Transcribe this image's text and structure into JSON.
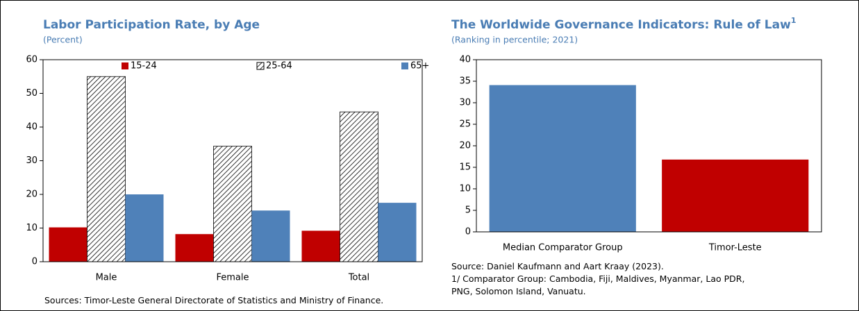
{
  "chart_data": [
    {
      "type": "bar",
      "title": "Labor Participation Rate, by Age",
      "subtitle": "(Percent)",
      "categories": [
        "Male",
        "Female",
        "Total"
      ],
      "series": [
        {
          "name": "15-24",
          "color": "#c00000",
          "values": [
            10.2,
            8.2,
            9.2
          ]
        },
        {
          "name": "25-64",
          "color": "#000000",
          "pattern": "hatch",
          "values": [
            55,
            34.3,
            44.5
          ]
        },
        {
          "name": "65+",
          "color": "#4f81b9",
          "values": [
            20,
            15.2,
            17.5
          ]
        }
      ],
      "ylim": [
        0,
        60
      ],
      "yticks": [
        0,
        10,
        20,
        30,
        40,
        50,
        60
      ],
      "legend": "top",
      "source": "Sources: Timor-Leste General Directorate of Statistics and Ministry of Finance."
    },
    {
      "type": "bar",
      "title": "The Worldwide Governance Indicators: Rule of Law",
      "title_superscript": "1",
      "subtitle": "(Ranking in percentile; 2021)",
      "categories": [
        "Median Comparator Group",
        "Timor-Leste"
      ],
      "values": [
        34.1,
        16.8
      ],
      "colors": [
        "#4f81b9",
        "#c00000"
      ],
      "ylim": [
        0,
        40
      ],
      "yticks": [
        0,
        5,
        10,
        15,
        20,
        25,
        30,
        35,
        40
      ],
      "source": "Source: Daniel Kaufmann and Aart Kraay (2023).",
      "note": "1/ Comparator Group: Cambodia, Fiji, Maldives, Myanmar, Lao PDR, PNG, Solomon Island, Vanuatu."
    }
  ]
}
